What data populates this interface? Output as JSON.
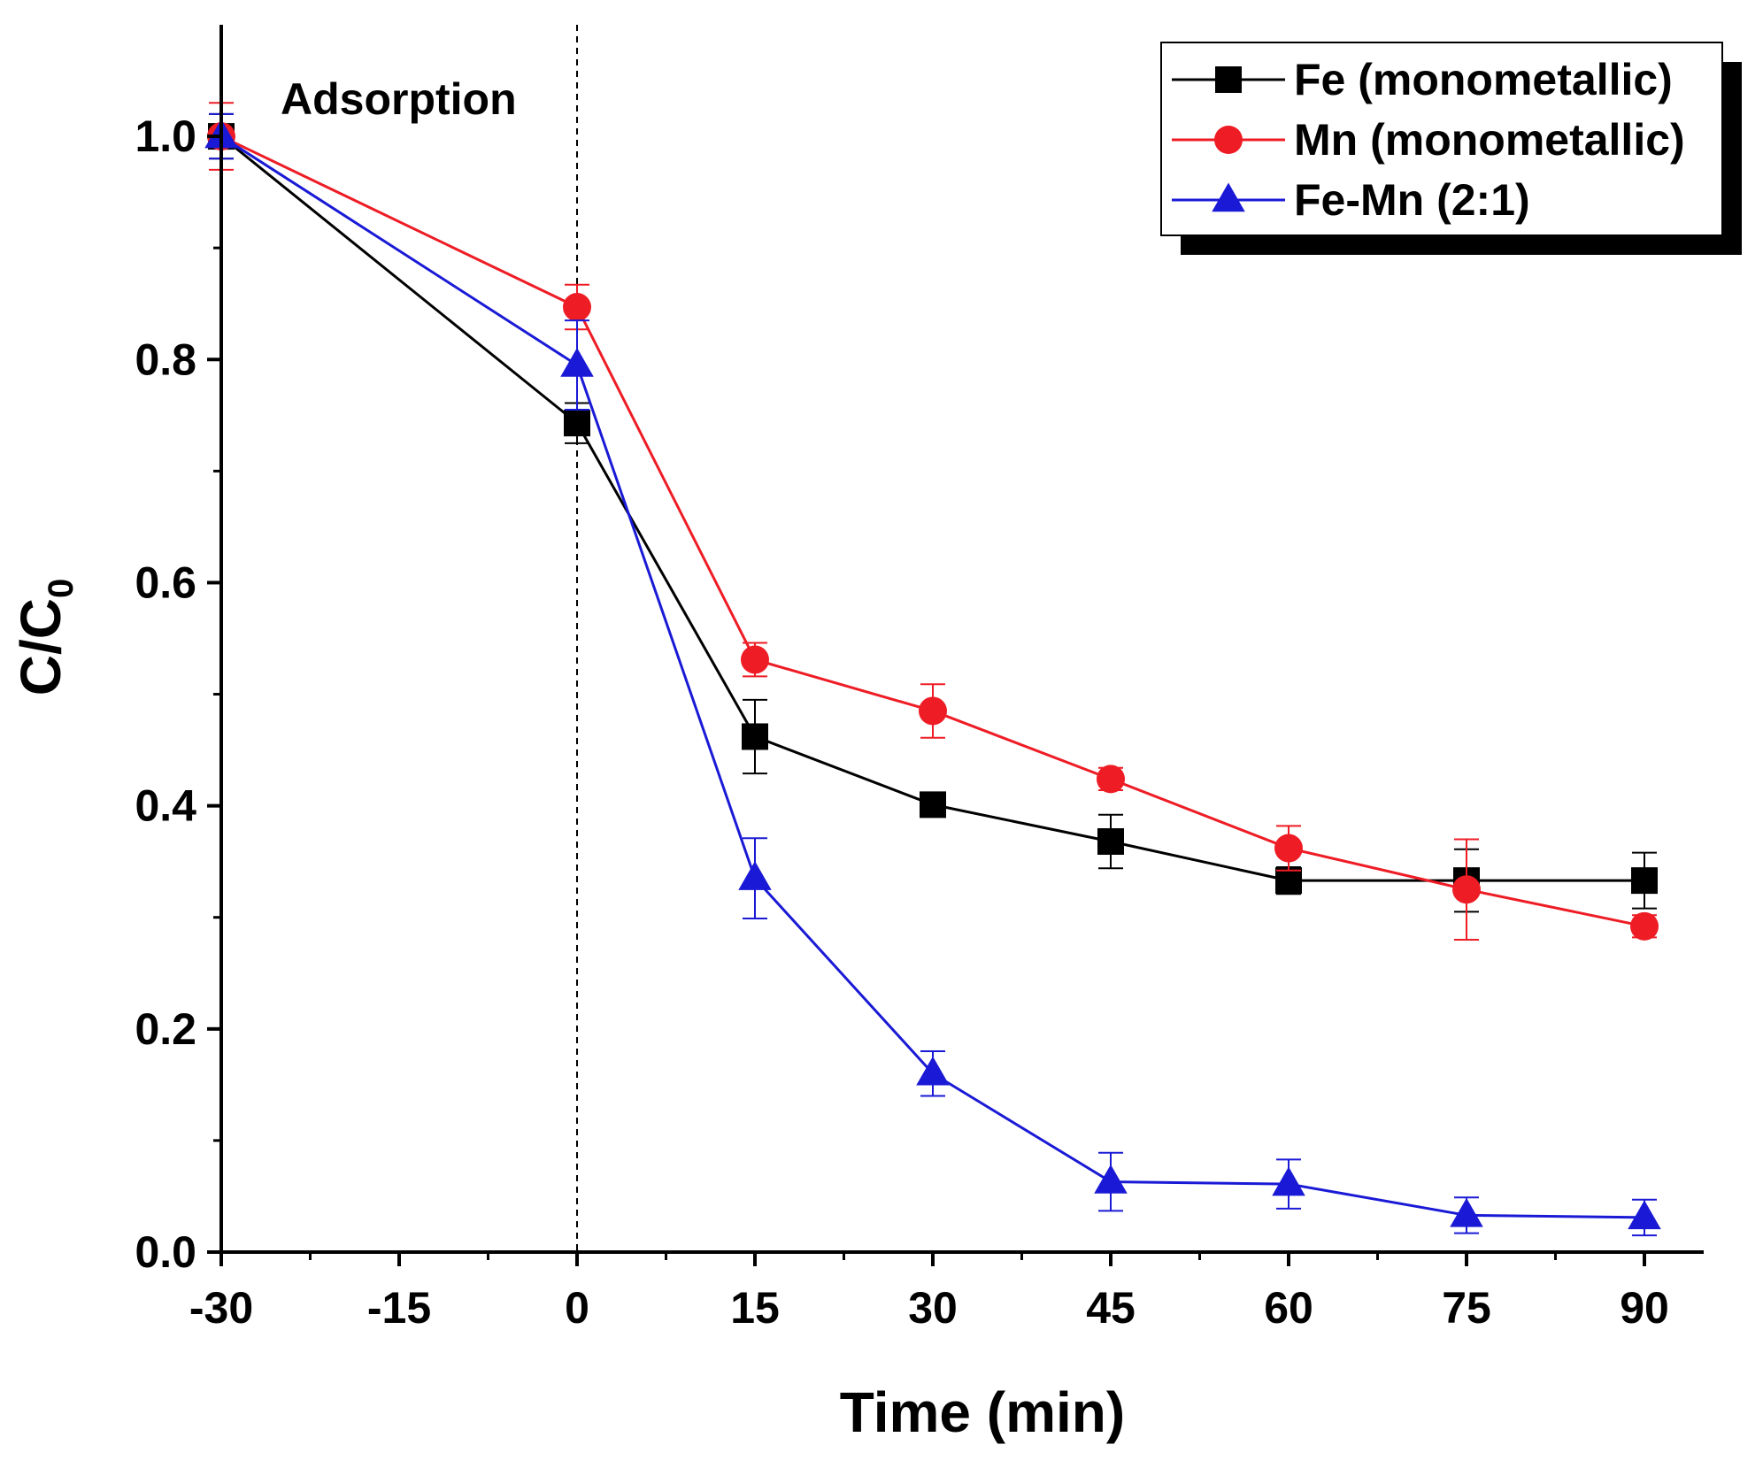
{
  "chart_data": {
    "type": "line",
    "title": "",
    "xlabel": "Time (min)",
    "ylabel": "C/C",
    "ylabel_subscript": "0",
    "xlim": [
      -30,
      95
    ],
    "ylim": [
      0.0,
      1.1
    ],
    "xticks": [
      -30,
      -15,
      0,
      15,
      30,
      45,
      60,
      75,
      90
    ],
    "xtick_labels": [
      "-30",
      "-15",
      "0",
      "15",
      "30",
      "45",
      "60",
      "75",
      "90"
    ],
    "yticks": [
      0.0,
      0.2,
      0.4,
      0.6,
      0.8,
      1.0
    ],
    "ytick_labels": [
      "0.0",
      "0.2",
      "0.4",
      "0.6",
      "0.8",
      "1.0"
    ],
    "grid": false,
    "legend_position": "top-right",
    "annotations": [
      {
        "text": "Adsorption",
        "x": -25,
        "y": 1.02
      }
    ],
    "reference_line": {
      "x": 0,
      "style": "dashed"
    },
    "series": [
      {
        "name": "Fe (monometallic)",
        "color": "#000000",
        "marker": "square",
        "x": [
          -30,
          0,
          15,
          30,
          45,
          60,
          75,
          90
        ],
        "y": [
          1.0,
          0.743,
          0.462,
          0.401,
          0.368,
          0.333,
          0.333,
          0.333
        ],
        "err": [
          0.02,
          0.018,
          0.033,
          0.01,
          0.024,
          0.012,
          0.028,
          0.025
        ]
      },
      {
        "name": "Mn (monometallic)",
        "color": "#ee1c25",
        "marker": "circle",
        "x": [
          -30,
          0,
          15,
          30,
          45,
          60,
          75,
          90
        ],
        "y": [
          1.0,
          0.847,
          0.531,
          0.485,
          0.424,
          0.362,
          0.325,
          0.292
        ],
        "err": [
          0.03,
          0.02,
          0.015,
          0.024,
          0.01,
          0.02,
          0.045,
          0.01
        ]
      },
      {
        "name": "Fe-Mn (2:1)",
        "color": "#1a1ad6",
        "marker": "triangle",
        "x": [
          -30,
          0,
          15,
          30,
          45,
          60,
          75,
          90
        ],
        "y": [
          1.0,
          0.795,
          0.335,
          0.16,
          0.063,
          0.061,
          0.033,
          0.031
        ],
        "err": [
          0.02,
          0.04,
          0.036,
          0.02,
          0.026,
          0.022,
          0.016,
          0.016
        ]
      }
    ]
  }
}
